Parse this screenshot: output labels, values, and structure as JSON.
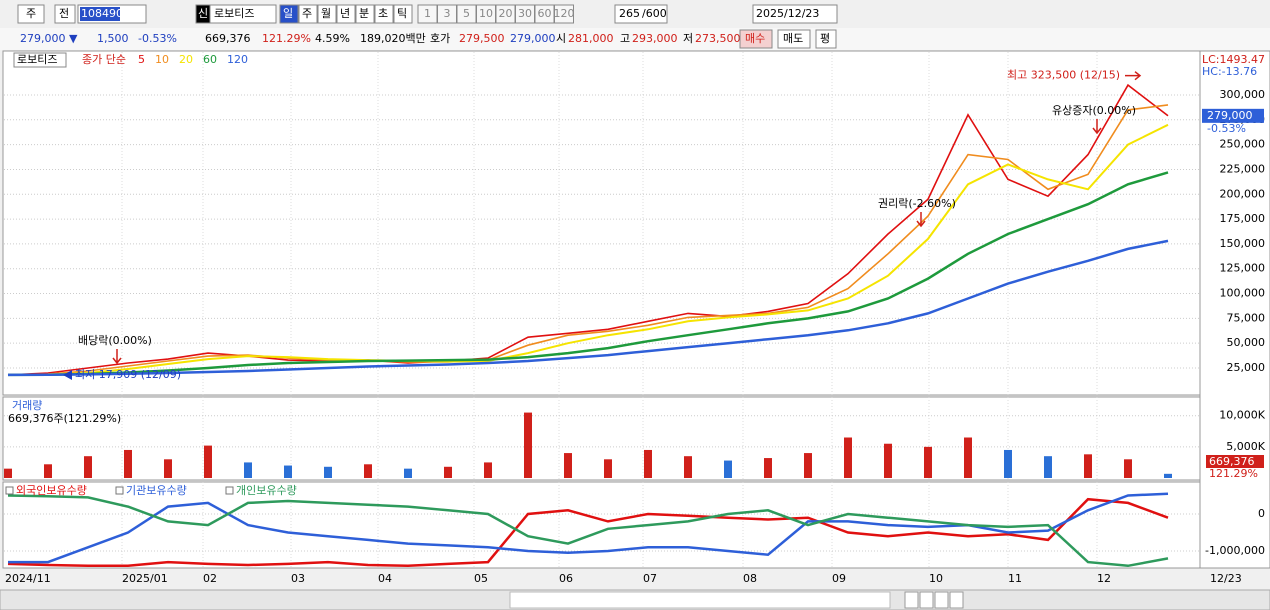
{
  "toolbar": {
    "market": "주",
    "prev": "전",
    "code": "108490",
    "credit": "신",
    "name": "로보티즈",
    "periods": [
      "일",
      "주",
      "월",
      "년",
      "분",
      "초",
      "틱"
    ],
    "intervals": [
      "1",
      "3",
      "5",
      "10",
      "20",
      "30",
      "60",
      "120"
    ],
    "count": "265",
    "max": "/600",
    "date": "2025/12/23"
  },
  "quote": {
    "items": [
      {
        "text": "279,000 ▼",
        "color": "#1f3fbf"
      },
      {
        "text": "1,500",
        "color": "#1f3fbf"
      },
      {
        "text": "-0.53%",
        "color": "#1f3fbf"
      },
      {
        "text": "669,376",
        "color": "#000000"
      },
      {
        "text": "121.29%",
        "color": "#d0201a"
      },
      {
        "text": "4.59%",
        "color": "#000000"
      },
      {
        "text": "189,020백만",
        "color": "#000000"
      },
      {
        "text": "호가",
        "color": "#000000"
      },
      {
        "text": "279,500",
        "color": "#d0201a"
      },
      {
        "text": "279,000",
        "color": "#1f3fbf"
      },
      {
        "text": "시",
        "color": "#000000"
      },
      {
        "text": "281,000",
        "color": "#d0201a"
      },
      {
        "text": "고",
        "color": "#000000"
      },
      {
        "text": "293,000",
        "color": "#d0201a"
      },
      {
        "text": "저",
        "color": "#000000"
      },
      {
        "text": "273,500",
        "color": "#d0201a"
      }
    ],
    "buy": "매수",
    "sell": "매도",
    "avg": "평"
  },
  "chart_data": [
    {
      "type": "line",
      "title": "로보티즈",
      "legend_prefix": "종가 단순",
      "series": [
        {
          "name": "5",
          "color": "#e01010",
          "values": [
            18000,
            20000,
            25000,
            30000,
            34000,
            40000,
            37000,
            33000,
            32000,
            33000,
            30000,
            32000,
            35000,
            56000,
            60000,
            64000,
            72000,
            80000,
            77000,
            82000,
            90000,
            120000,
            160000,
            195000,
            280000,
            215000,
            198000,
            240000,
            310000,
            279000
          ]
        },
        {
          "name": "10",
          "color": "#f08c1e",
          "values": [
            18000,
            19000,
            22000,
            27000,
            32000,
            37000,
            38000,
            35000,
            33000,
            32500,
            31000,
            31000,
            33000,
            48000,
            58000,
            62000,
            68000,
            76000,
            78000,
            80000,
            86000,
            105000,
            140000,
            178000,
            240000,
            235000,
            205000,
            220000,
            285000,
            290000
          ]
        },
        {
          "name": "20",
          "color": "#f5e400",
          "values": [
            18000,
            18500,
            20000,
            24000,
            29000,
            34000,
            37000,
            36000,
            34000,
            33000,
            32000,
            31500,
            32000,
            40000,
            50000,
            58000,
            64000,
            72000,
            76000,
            79000,
            83000,
            95000,
            118000,
            155000,
            210000,
            230000,
            215000,
            205000,
            250000,
            270000
          ]
        },
        {
          "name": "60",
          "color": "#1e9a3c",
          "values": [
            18000,
            18200,
            19000,
            20500,
            22500,
            25000,
            28000,
            30000,
            31000,
            32000,
            32500,
            33000,
            33500,
            36000,
            40000,
            45000,
            52000,
            58000,
            64000,
            70000,
            75000,
            82000,
            95000,
            115000,
            140000,
            160000,
            175000,
            190000,
            210000,
            222000
          ]
        },
        {
          "name": "120",
          "color": "#2e5fd8",
          "values": [
            18000,
            18100,
            18500,
            19200,
            20000,
            21000,
            22000,
            23500,
            25000,
            26500,
            27500,
            28500,
            30000,
            32000,
            35000,
            38000,
            42000,
            46000,
            50000,
            54000,
            58000,
            63000,
            70000,
            80000,
            95000,
            110000,
            122000,
            133000,
            145000,
            153000
          ]
        }
      ],
      "ylim": [
        -2200,
        343300
      ],
      "yticks": [
        {
          "value": 25000,
          "label": "25,000"
        },
        {
          "value": 50000,
          "label": "50,000"
        },
        {
          "value": 75000,
          "label": "75,000"
        },
        {
          "value": 100000,
          "label": "100,000"
        },
        {
          "value": 125000,
          "label": "125,000"
        },
        {
          "value": 150000,
          "label": "150,000"
        },
        {
          "value": 175000,
          "label": "175,000"
        },
        {
          "value": 200000,
          "label": "200,000"
        },
        {
          "value": 225000,
          "label": "225,000"
        },
        {
          "value": 250000,
          "label": "250,000"
        },
        {
          "value": 275000,
          "label": "275,000"
        },
        {
          "value": 300000,
          "label": "300,000"
        }
      ],
      "grid": true,
      "last_price": {
        "value": 279000,
        "label": "279,000",
        "change": "-0.53%"
      },
      "lc": "LC:1493.47",
      "hc": "HC:-13.76",
      "annotations": [
        {
          "text": "최고 323,500 (12/15)",
          "value": 323500
        },
        {
          "text": "최저 17,909 (12/09)",
          "value": 17909
        },
        {
          "text": "배당락(0.00%)"
        },
        {
          "text": "권리락(-2.60%)"
        },
        {
          "text": "유상증자(0.00%)"
        }
      ]
    },
    {
      "type": "bar",
      "title": "거래량",
      "subtitle": "669,376주(121.29%)",
      "values": [
        1500000,
        2200000,
        3500000,
        4500000,
        3000000,
        5200000,
        2500000,
        2000000,
        1800000,
        2200000,
        1500000,
        1800000,
        2500000,
        10500000,
        4000000,
        3000000,
        4500000,
        3500000,
        2800000,
        3200000,
        4000000,
        6500000,
        5500000,
        5000000,
        6500000,
        4500000,
        3500000,
        3800000,
        3000000,
        669376
      ],
      "colors": [
        "#d0201a",
        "#d0201a",
        "#d0201a",
        "#d0201a",
        "#d0201a",
        "#d0201a",
        "#2a6fd6",
        "#2a6fd6",
        "#2a6fd6",
        "#d0201a",
        "#2a6fd6",
        "#d0201a",
        "#d0201a",
        "#d0201a",
        "#d0201a",
        "#d0201a",
        "#d0201a",
        "#d0201a",
        "#2a6fd6",
        "#d0201a",
        "#d0201a",
        "#d0201a",
        "#d0201a",
        "#d0201a",
        "#d0201a",
        "#2a6fd6",
        "#2a6fd6",
        "#d0201a",
        "#d0201a",
        "#2a6fd6"
      ],
      "ylim": [
        0,
        13000000
      ],
      "yticks": [
        {
          "value": 5000000,
          "label": "5,000K"
        },
        {
          "value": 10000000,
          "label": "10,000K"
        }
      ],
      "last_label": "669,376",
      "last_ratio": "121.29%"
    },
    {
      "type": "line",
      "series": [
        {
          "name": "외국인보유수량",
          "color": "#e01010",
          "values": [
            -1350000,
            -1380000,
            -1400000,
            -1400000,
            -1300000,
            -1350000,
            -1380000,
            -1350000,
            -1300000,
            -1380000,
            -1400000,
            -1350000,
            -1300000,
            0,
            100000,
            -200000,
            0,
            -50000,
            -100000,
            -150000,
            -100000,
            -500000,
            -600000,
            -500000,
            -600000,
            -550000,
            -700000,
            400000,
            300000,
            -100000
          ]
        },
        {
          "name": "기관보유수량",
          "color": "#2e5fd8",
          "values": [
            -1300000,
            -1300000,
            -900000,
            -500000,
            200000,
            300000,
            -300000,
            -500000,
            -600000,
            -700000,
            -800000,
            -850000,
            -900000,
            -1000000,
            -1050000,
            -1000000,
            -900000,
            -900000,
            -1000000,
            -1100000,
            -200000,
            -200000,
            -300000,
            -350000,
            -300000,
            -500000,
            -450000,
            100000,
            500000,
            550000
          ]
        },
        {
          "name": "개인보유수량",
          "color": "#2e9a5c",
          "values": [
            500000,
            480000,
            450000,
            200000,
            -200000,
            -300000,
            300000,
            350000,
            300000,
            250000,
            200000,
            100000,
            0,
            -600000,
            -800000,
            -400000,
            -300000,
            -200000,
            0,
            100000,
            -300000,
            0,
            -100000,
            -200000,
            -300000,
            -350000,
            -300000,
            -1300000,
            -1400000,
            -1200000
          ]
        }
      ],
      "ylim": [
        -1460000,
        865000
      ],
      "yticks": [
        0,
        {
          "value": -1000000,
          "label": "-1,000,000"
        }
      ]
    }
  ],
  "date_axis": [
    "2024/11",
    "2025/01",
    "02",
    "03",
    "04",
    "05",
    "06",
    "07",
    "08",
    "09",
    "10",
    "11",
    "12",
    "12/23"
  ]
}
